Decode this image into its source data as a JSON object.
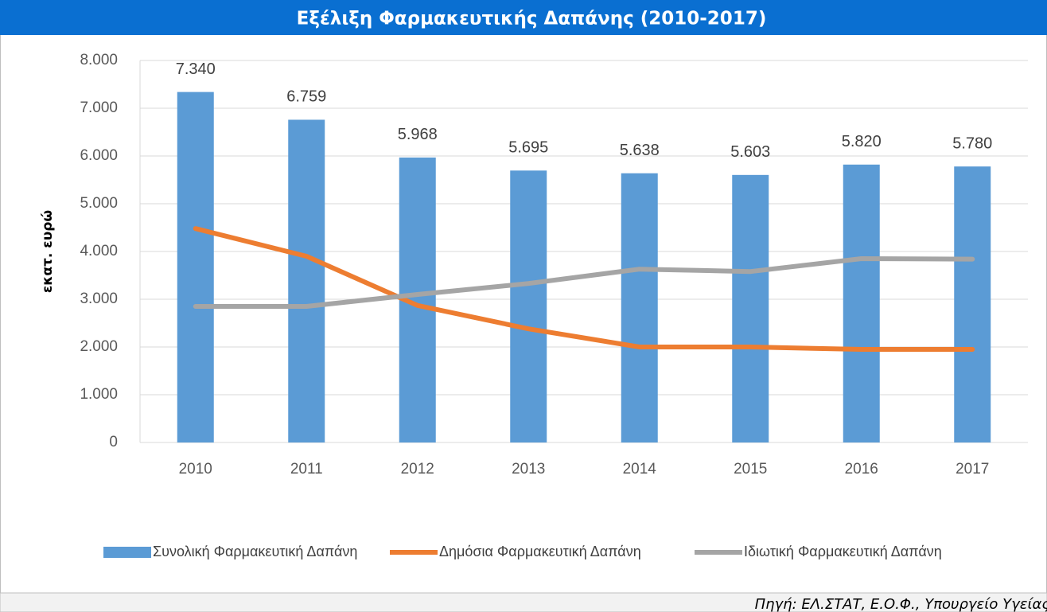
{
  "chart_data": {
    "type": "bar",
    "title": "Εξέλιξη Φαρμακευτικής Δαπάνης (2010-2017)",
    "y_label": "εκατ. ευρώ",
    "source": "Πηγή: ΕΛ.ΣΤΑΤ, Ε.Ο.Φ., Υπουργείο Υγείας",
    "categories": [
      "2010",
      "2011",
      "2012",
      "2013",
      "2014",
      "2015",
      "2016",
      "2017"
    ],
    "series": [
      {
        "name": "Συνολική Φαρμακευτική Δαπάνη",
        "type": "bar",
        "color": "#5b9bd5",
        "values": [
          7340,
          6759,
          5968,
          5695,
          5638,
          5603,
          5820,
          5780
        ],
        "value_labels": [
          "7.340",
          "6.759",
          "5.968",
          "5.695",
          "5.638",
          "5.603",
          "5.820",
          "5.780"
        ]
      },
      {
        "name": "Δημόσια Φαρμακευτική Δαπάνη",
        "type": "line",
        "color": "#ed7d31",
        "values": [
          4480,
          3900,
          2870,
          2380,
          2000,
          2000,
          1950,
          1950
        ]
      },
      {
        "name": "Ιδιωτική Φαρμακευτική Δαπάνη",
        "type": "line",
        "color": "#a5a5a5",
        "values": [
          2850,
          2850,
          3100,
          3330,
          3630,
          3580,
          3850,
          3840
        ]
      }
    ],
    "ylim": [
      0,
      8000
    ],
    "yticks": [
      0,
      {
        "value": 1000,
        "label": "1.000"
      },
      {
        "value": 2000,
        "label": "2.000"
      },
      {
        "value": 3000,
        "label": "3.000"
      },
      {
        "value": 4000,
        "label": "4.000"
      },
      {
        "value": 5000,
        "label": "5.000"
      },
      {
        "value": 6000,
        "label": "6.000"
      },
      {
        "value": 7000,
        "label": "7.000"
      },
      {
        "value": 8000,
        "label": "8.000"
      }
    ],
    "grid": true,
    "legend": "bottom"
  }
}
